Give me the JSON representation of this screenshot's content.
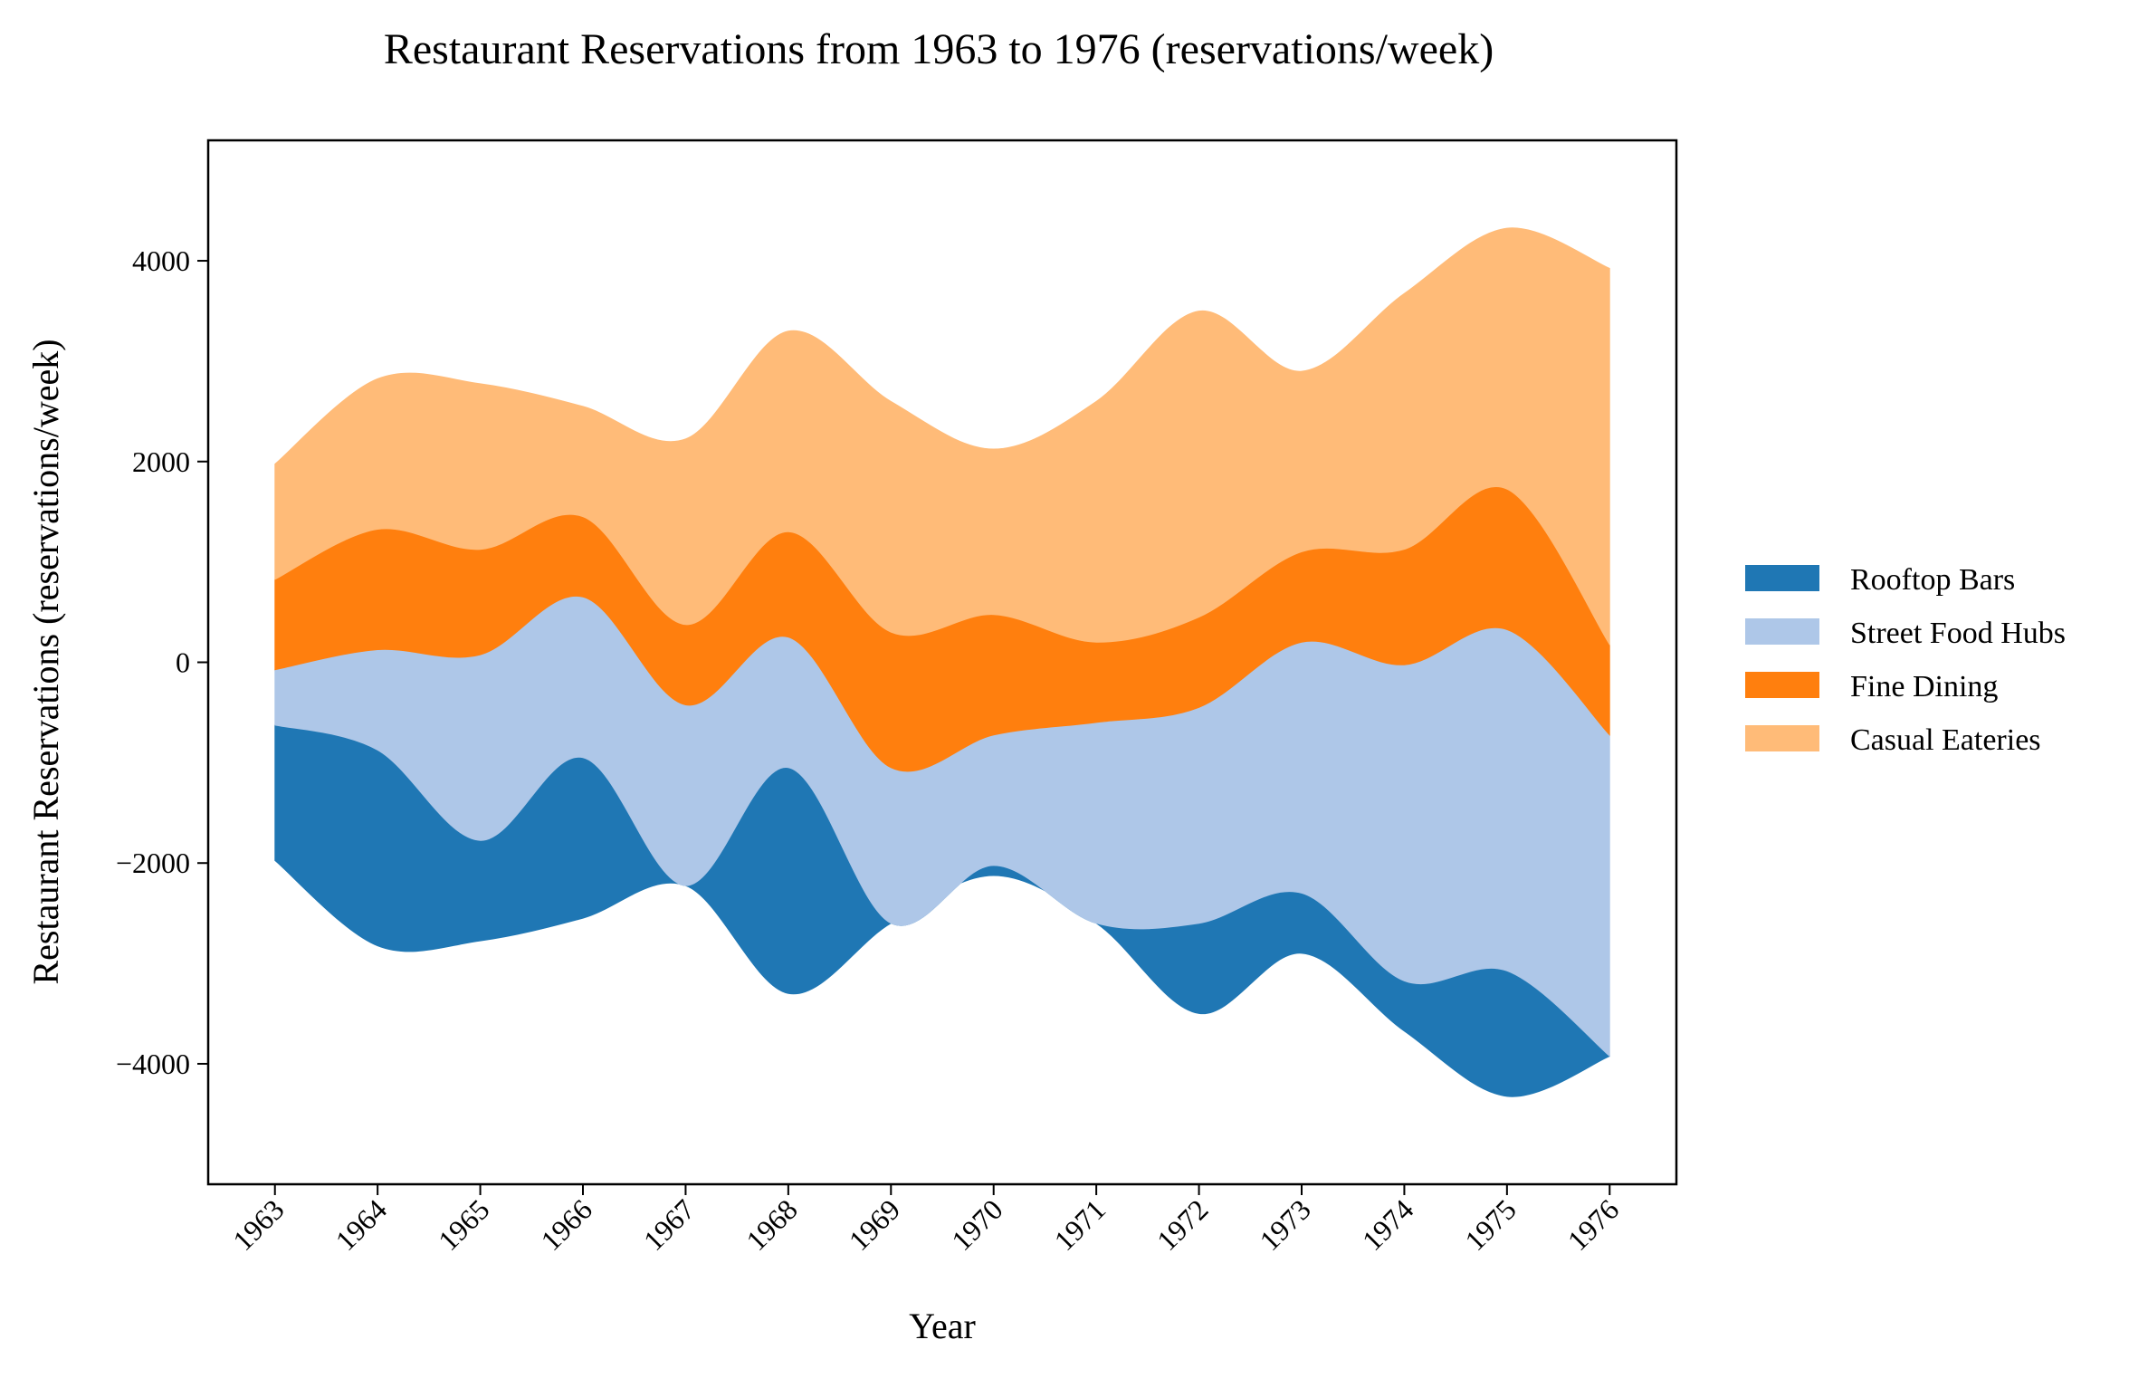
{
  "chart_data": {
    "type": "area",
    "subtype": "streamgraph",
    "title": "Restaurant Reservations from 1963 to 1976 (reservations/week)",
    "xlabel": "Year",
    "ylabel": "Restaurant Reservations (reservations/week)",
    "x": [
      1963,
      1964,
      1965,
      1966,
      1967,
      1968,
      1969,
      1970,
      1971,
      1972,
      1973,
      1974,
      1975,
      1976
    ],
    "x_tick_labels": [
      "1963",
      "1964",
      "1965",
      "1966",
      "1967",
      "1968",
      "1969",
      "1970",
      "1971",
      "1972",
      "1973",
      "1974",
      "1975",
      "1976"
    ],
    "ylim": [
      -5200,
      5200
    ],
    "y_ticks": [
      -4000,
      -2000,
      0,
      2000,
      4000
    ],
    "y_tick_labels": [
      "−4000",
      "−2000",
      "0",
      "2000",
      "4000"
    ],
    "grid": false,
    "legend_position": "right",
    "series": [
      {
        "name": "Rooftop Bars",
        "color": "#1f77b4",
        "values": [
          1350,
          1950,
          1000,
          1600,
          0,
          2250,
          0,
          100,
          0,
          900,
          600,
          500,
          1250,
          0
        ]
      },
      {
        "name": "Street Food Hubs",
        "color": "#aec7e8",
        "values": [
          550,
          1000,
          1850,
          1600,
          1800,
          1300,
          1550,
          1300,
          2000,
          2150,
          2500,
          3150,
          3400,
          3200
        ]
      },
      {
        "name": "Fine Dining",
        "color": "#ff7f0e",
        "values": [
          900,
          1200,
          1050,
          800,
          800,
          1050,
          1350,
          1200,
          800,
          900,
          900,
          1150,
          1400,
          900
        ]
      },
      {
        "name": "Casual Eateries",
        "color": "#ffbb78",
        "values": [
          1150,
          1500,
          1650,
          1100,
          1850,
          2000,
          2300,
          1650,
          2400,
          3050,
          1800,
          2550,
          2600,
          3750
        ]
      }
    ]
  }
}
